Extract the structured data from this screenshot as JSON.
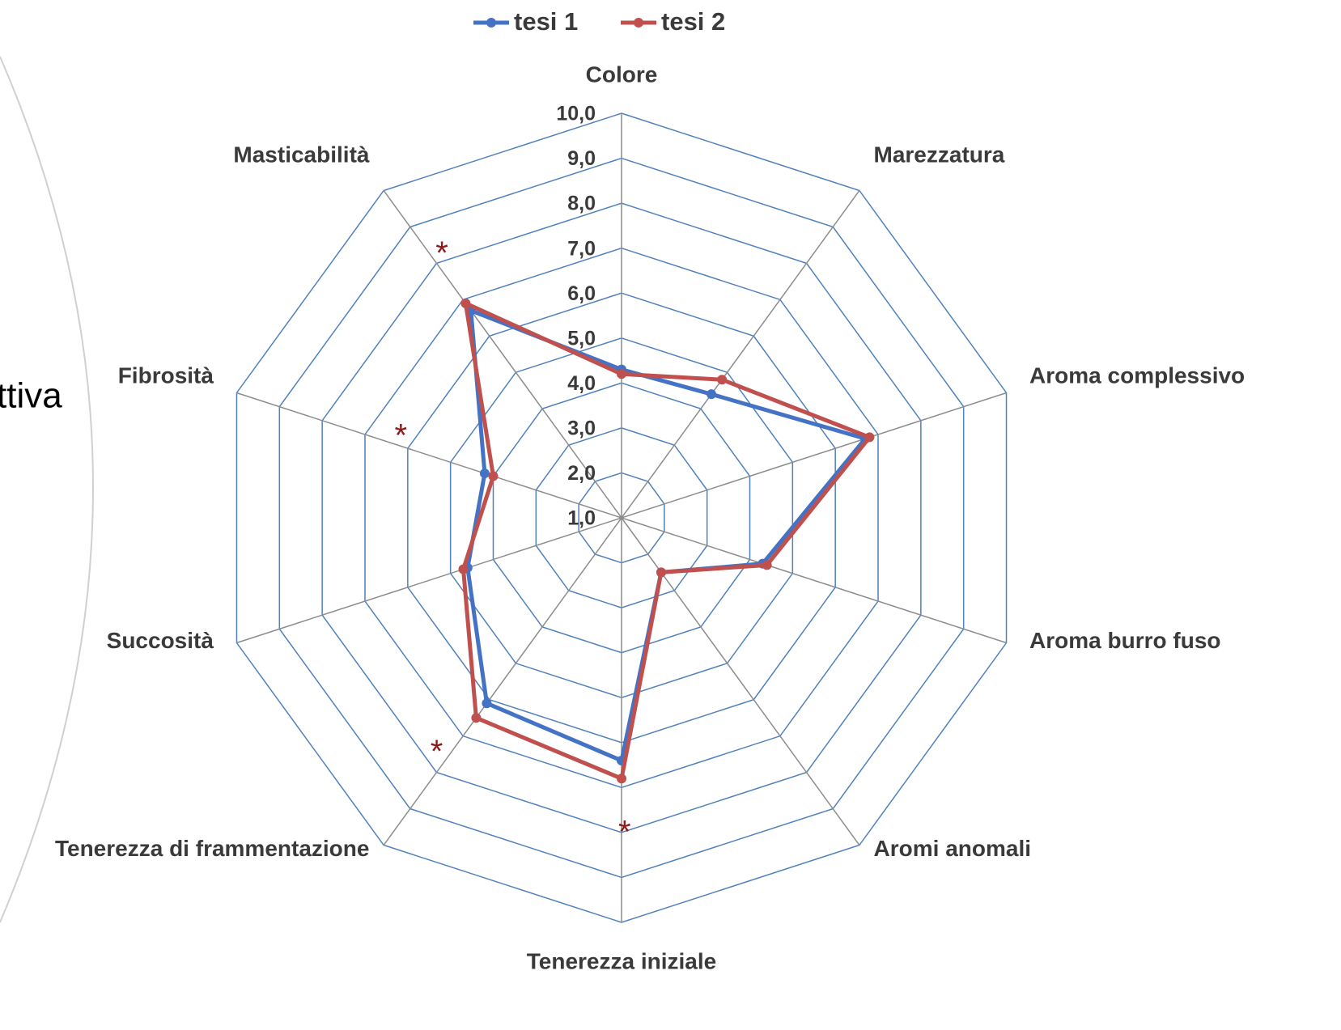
{
  "chart_data": {
    "type": "radar",
    "categories": [
      "Colore",
      "Marezzatura",
      "Aroma complessivo",
      "Aroma burro fuso",
      "Aromi anomali",
      "Tenerezza iniziale",
      "Tenerezza di frammentazione",
      "Succosità",
      "Fibrosità",
      "Masticabilità"
    ],
    "series": [
      {
        "name": "tesi 1",
        "color": "#4472c4",
        "values": [
          4.3,
          4.4,
          6.7,
          4.3,
          2.5,
          6.4,
          6.1,
          4.6,
          4.2,
          6.7
        ]
      },
      {
        "name": "tesi 2",
        "color": "#c0504d",
        "values": [
          4.2,
          4.8,
          6.8,
          4.4,
          2.5,
          6.8,
          6.5,
          4.7,
          4.0,
          6.9
        ]
      }
    ],
    "ylim": [
      1,
      10
    ],
    "yticks": [
      {
        "value": 1,
        "label": "1,0"
      },
      {
        "value": 2,
        "label": "2,0"
      },
      {
        "value": 3,
        "label": "3,0"
      },
      {
        "value": 4,
        "label": "4,0"
      },
      {
        "value": 5,
        "label": "5,0"
      },
      {
        "value": 6,
        "label": "6,0"
      },
      {
        "value": 7,
        "label": "7,0"
      },
      {
        "value": 8,
        "label": "8,0"
      },
      {
        "value": 9,
        "label": "9,0"
      },
      {
        "value": 10,
        "label": "10,0"
      }
    ],
    "grid": true,
    "legend": "top",
    "annotations": [
      "*",
      "*",
      "*",
      "*"
    ],
    "side_text": "ttiva"
  }
}
